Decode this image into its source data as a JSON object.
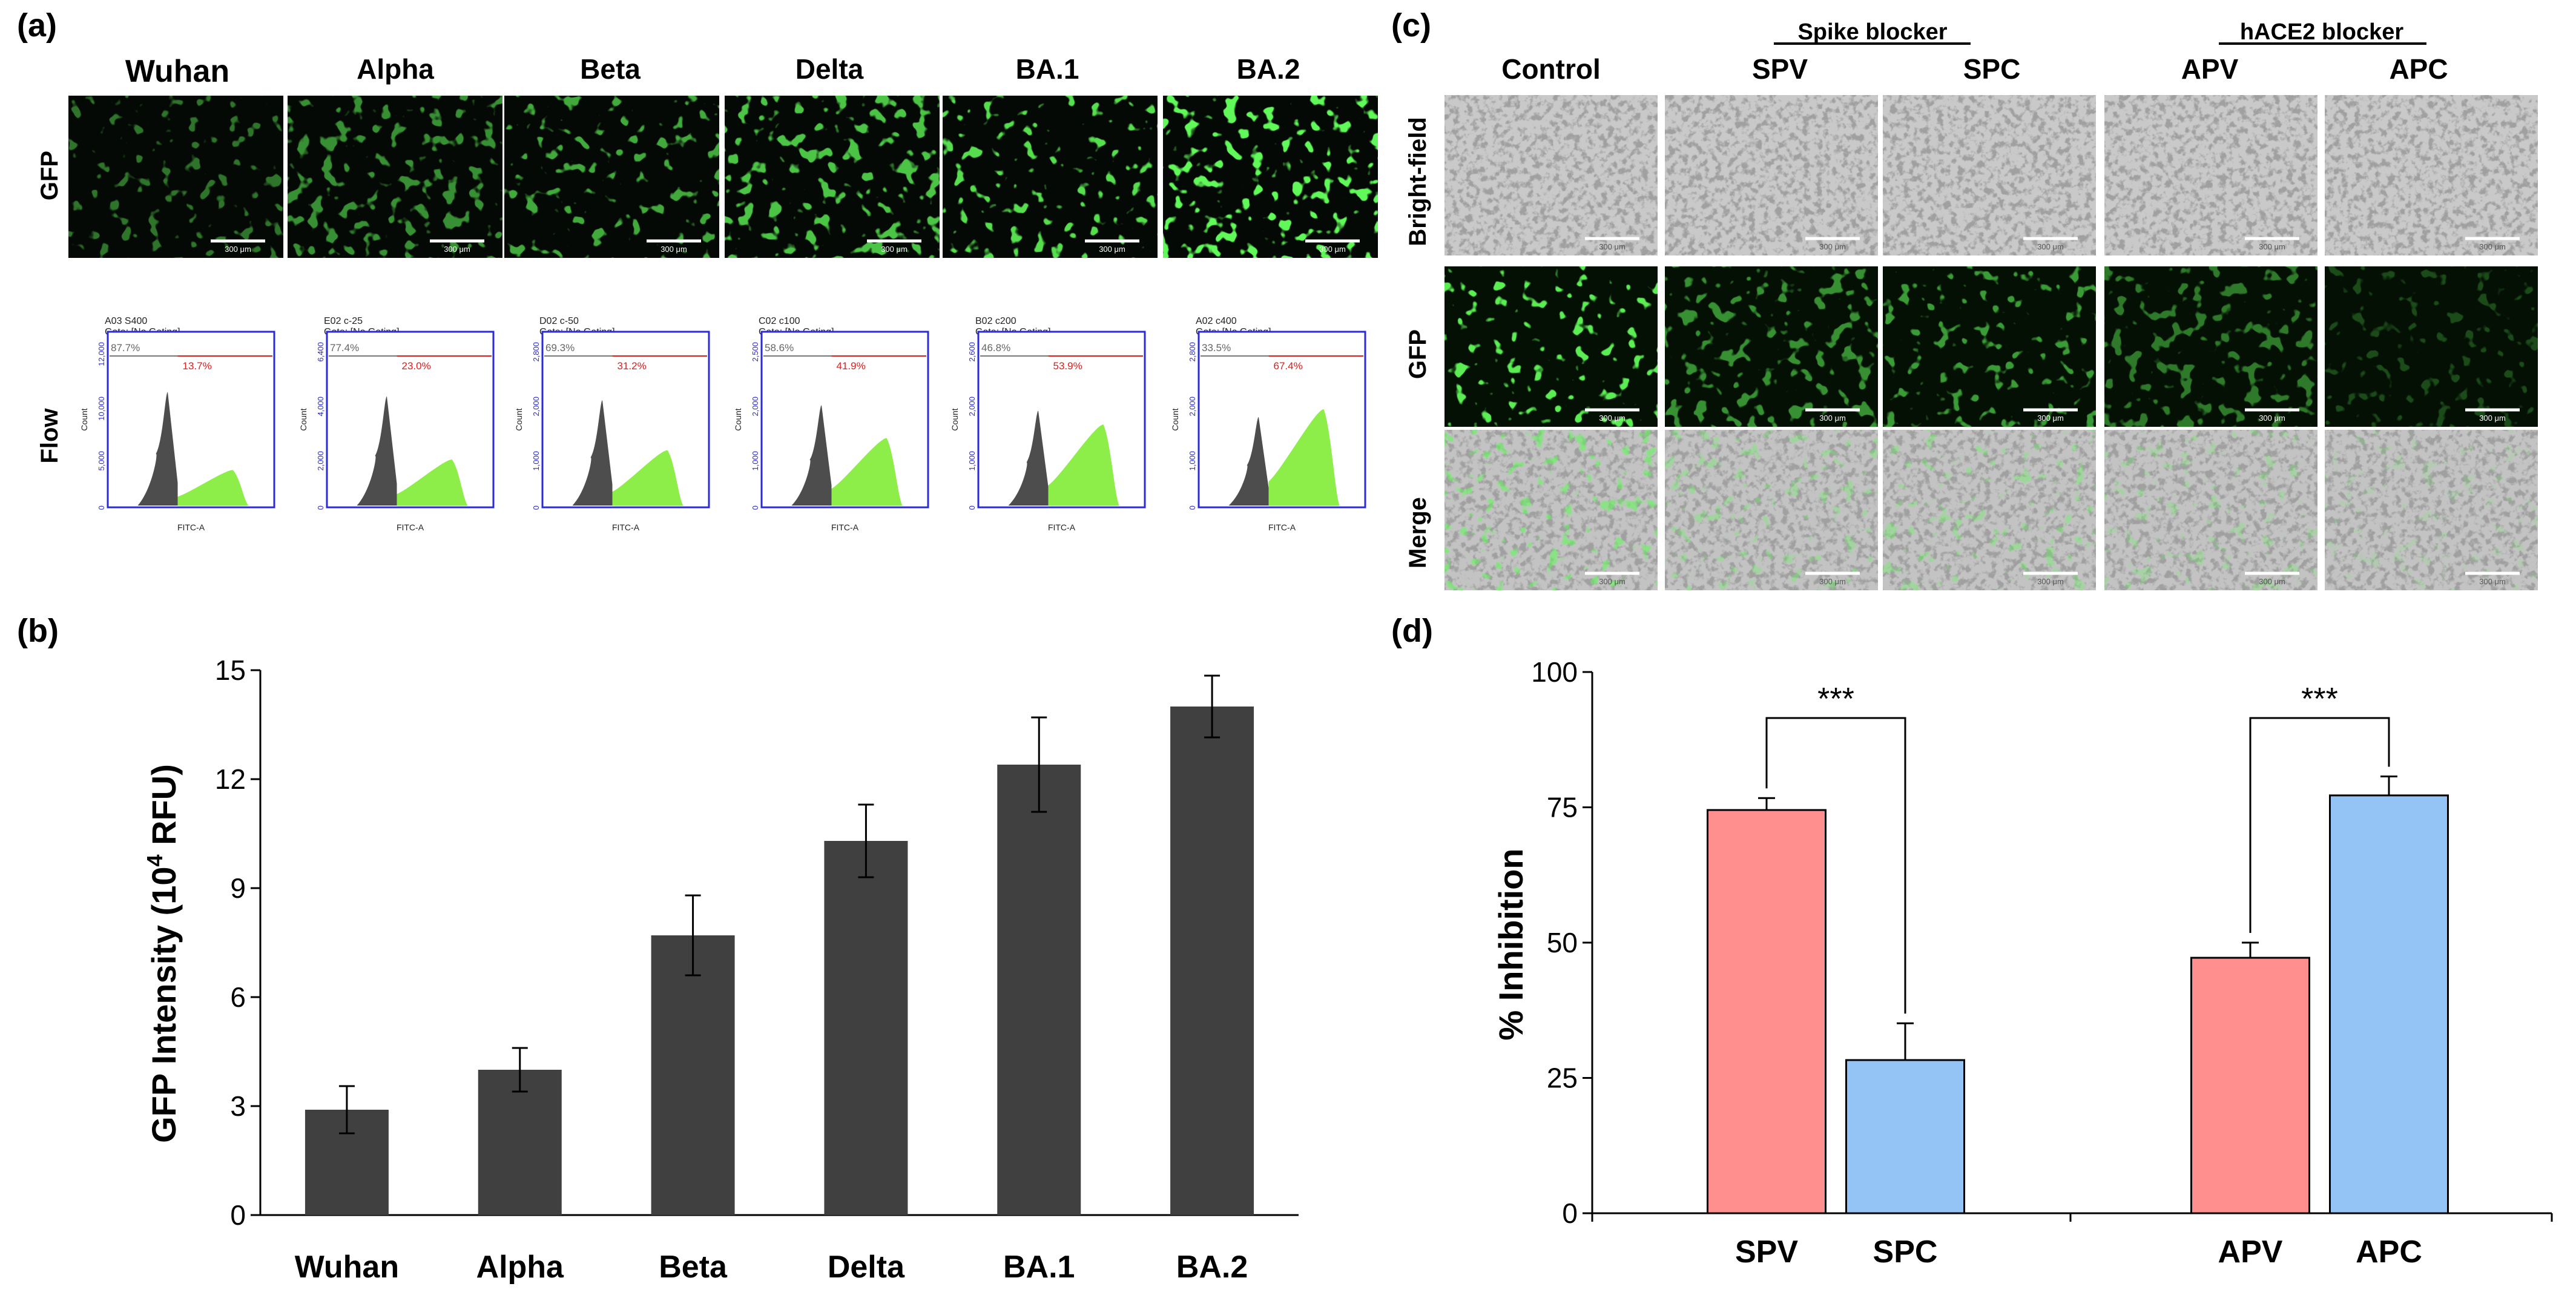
{
  "panel_a": {
    "label": "(a)",
    "row_labels": {
      "gfp": "GFP",
      "flow": "Flow"
    },
    "strains": [
      "Wuhan",
      "Alpha",
      "Beta",
      "Delta",
      "BA.1",
      "BA.2"
    ],
    "scale_bar_text": "300 μm",
    "flow_plots": [
      {
        "id": "A03 S400",
        "gate": "Gate: [No Gating]",
        "neg": "87.7%",
        "pos": "13.7%",
        "yticks": [
          "0",
          "5,000",
          "10,000",
          "12,000"
        ]
      },
      {
        "id": "E02 c-25",
        "gate": "Gate: [No Gating]",
        "neg": "77.4%",
        "pos": "23.0%",
        "yticks": [
          "0",
          "2,000",
          "4,000",
          "6,400"
        ]
      },
      {
        "id": "D02 c-50",
        "gate": "Gate: [No Gating]",
        "neg": "69.3%",
        "pos": "31.2%",
        "yticks": [
          "0",
          "1,000",
          "2,000",
          "2,800"
        ]
      },
      {
        "id": "C02 c100",
        "gate": "Gate: [No Gating]",
        "neg": "58.6%",
        "pos": "41.9%",
        "yticks": [
          "0",
          "1,000",
          "2,000",
          "2,500"
        ]
      },
      {
        "id": "B02 c200",
        "gate": "Gate: [No Gating]",
        "neg": "46.8%",
        "pos": "53.9%",
        "yticks": [
          "0",
          "1,000",
          "2,000",
          "2,600"
        ]
      },
      {
        "id": "A02 c400",
        "gate": "Gate: [No Gating]",
        "neg": "33.5%",
        "pos": "67.4%",
        "yticks": [
          "0",
          "1,000",
          "2,000",
          "2,800"
        ]
      }
    ],
    "flow_axis": {
      "xlabel": "FITC-A",
      "ylabel": "Count"
    }
  },
  "panel_c": {
    "label": "(c)",
    "group_labels": {
      "spike": "Spike blocker",
      "hace2": "hACE2 blocker"
    },
    "columns": [
      "Control",
      "SPV",
      "SPC",
      "APV",
      "APC"
    ],
    "rows": [
      "Bright-field",
      "GFP",
      "Merge"
    ],
    "scale_bar_text": "300 μm"
  },
  "chart_data": [
    {
      "panel": "(b)",
      "type": "bar",
      "categories": [
        "Wuhan",
        "Alpha",
        "Beta",
        "Delta",
        "BA.1",
        "BA.2"
      ],
      "values": [
        2.9,
        4.0,
        7.7,
        10.3,
        12.4,
        14.0
      ],
      "errors": [
        0.65,
        0.6,
        1.1,
        1.0,
        1.3,
        0.85
      ],
      "ylim": [
        0,
        15
      ],
      "yticks": [
        "0",
        "3",
        "6",
        "9",
        "12",
        "15"
      ],
      "ylabel_main": "GFP Intensity  (10",
      "ylabel_sup": "4",
      "ylabel_end": " RFU)",
      "bar_color": "#404040"
    },
    {
      "panel": "(d)",
      "type": "bar",
      "categories": [
        "SPV",
        "SPC",
        "APV",
        "APC"
      ],
      "values": [
        74.5,
        28.3,
        47.2,
        77.2
      ],
      "errors": [
        2.2,
        6.8,
        2.8,
        3.5
      ],
      "colors": [
        "#ff8f8f",
        "#94c4f6",
        "#ff8f8f",
        "#94c4f6"
      ],
      "ylim": [
        0,
        100
      ],
      "yticks": [
        "0",
        "25",
        "50",
        "75",
        "100"
      ],
      "ylabel": "% Inhibition",
      "significance": [
        "***",
        "***"
      ]
    }
  ]
}
